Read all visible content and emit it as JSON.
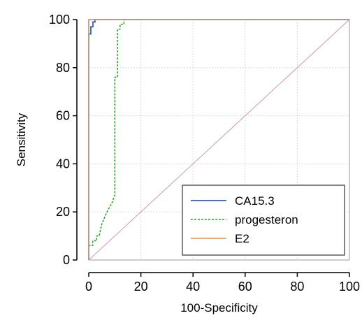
{
  "chart_data": {
    "type": "line",
    "title": "",
    "xlabel": "100-Specificity",
    "ylabel": "Sensitivity",
    "xlim": [
      0,
      100
    ],
    "ylim": [
      0,
      100
    ],
    "xticks": [
      0,
      20,
      40,
      60,
      80,
      100
    ],
    "yticks": [
      0,
      20,
      40,
      60,
      80,
      100
    ],
    "grid": true,
    "legend_position": "bottom-right",
    "diagonal_reference": {
      "x": [
        0,
        100
      ],
      "y": [
        0,
        100
      ],
      "color": "#c89aa6"
    },
    "series": [
      {
        "name": "CA15.3",
        "color": "#3a5fb0",
        "style": "solid",
        "x": [
          0,
          0,
          0.8,
          0.8,
          1.6,
          1.6,
          2.4,
          2.4,
          100
        ],
        "y": [
          0,
          94,
          94,
          97,
          97,
          99,
          99,
          100,
          100
        ]
      },
      {
        "name": "progesteron",
        "color": "#2ca02c",
        "style": "dashed",
        "x": [
          0,
          0,
          1.5,
          1.5,
          3,
          3,
          4,
          5,
          7,
          9,
          10,
          10,
          11,
          11,
          12,
          12,
          13.5,
          13.5,
          100
        ],
        "y": [
          0,
          6,
          6,
          8,
          8,
          10,
          10,
          15,
          20,
          24,
          27,
          76,
          76,
          96,
          96,
          98,
          98,
          100,
          100
        ]
      },
      {
        "name": "E2",
        "color": "#e8a26a",
        "style": "solid",
        "x": [
          0,
          0,
          100
        ],
        "y": [
          0,
          100,
          100
        ]
      }
    ]
  }
}
